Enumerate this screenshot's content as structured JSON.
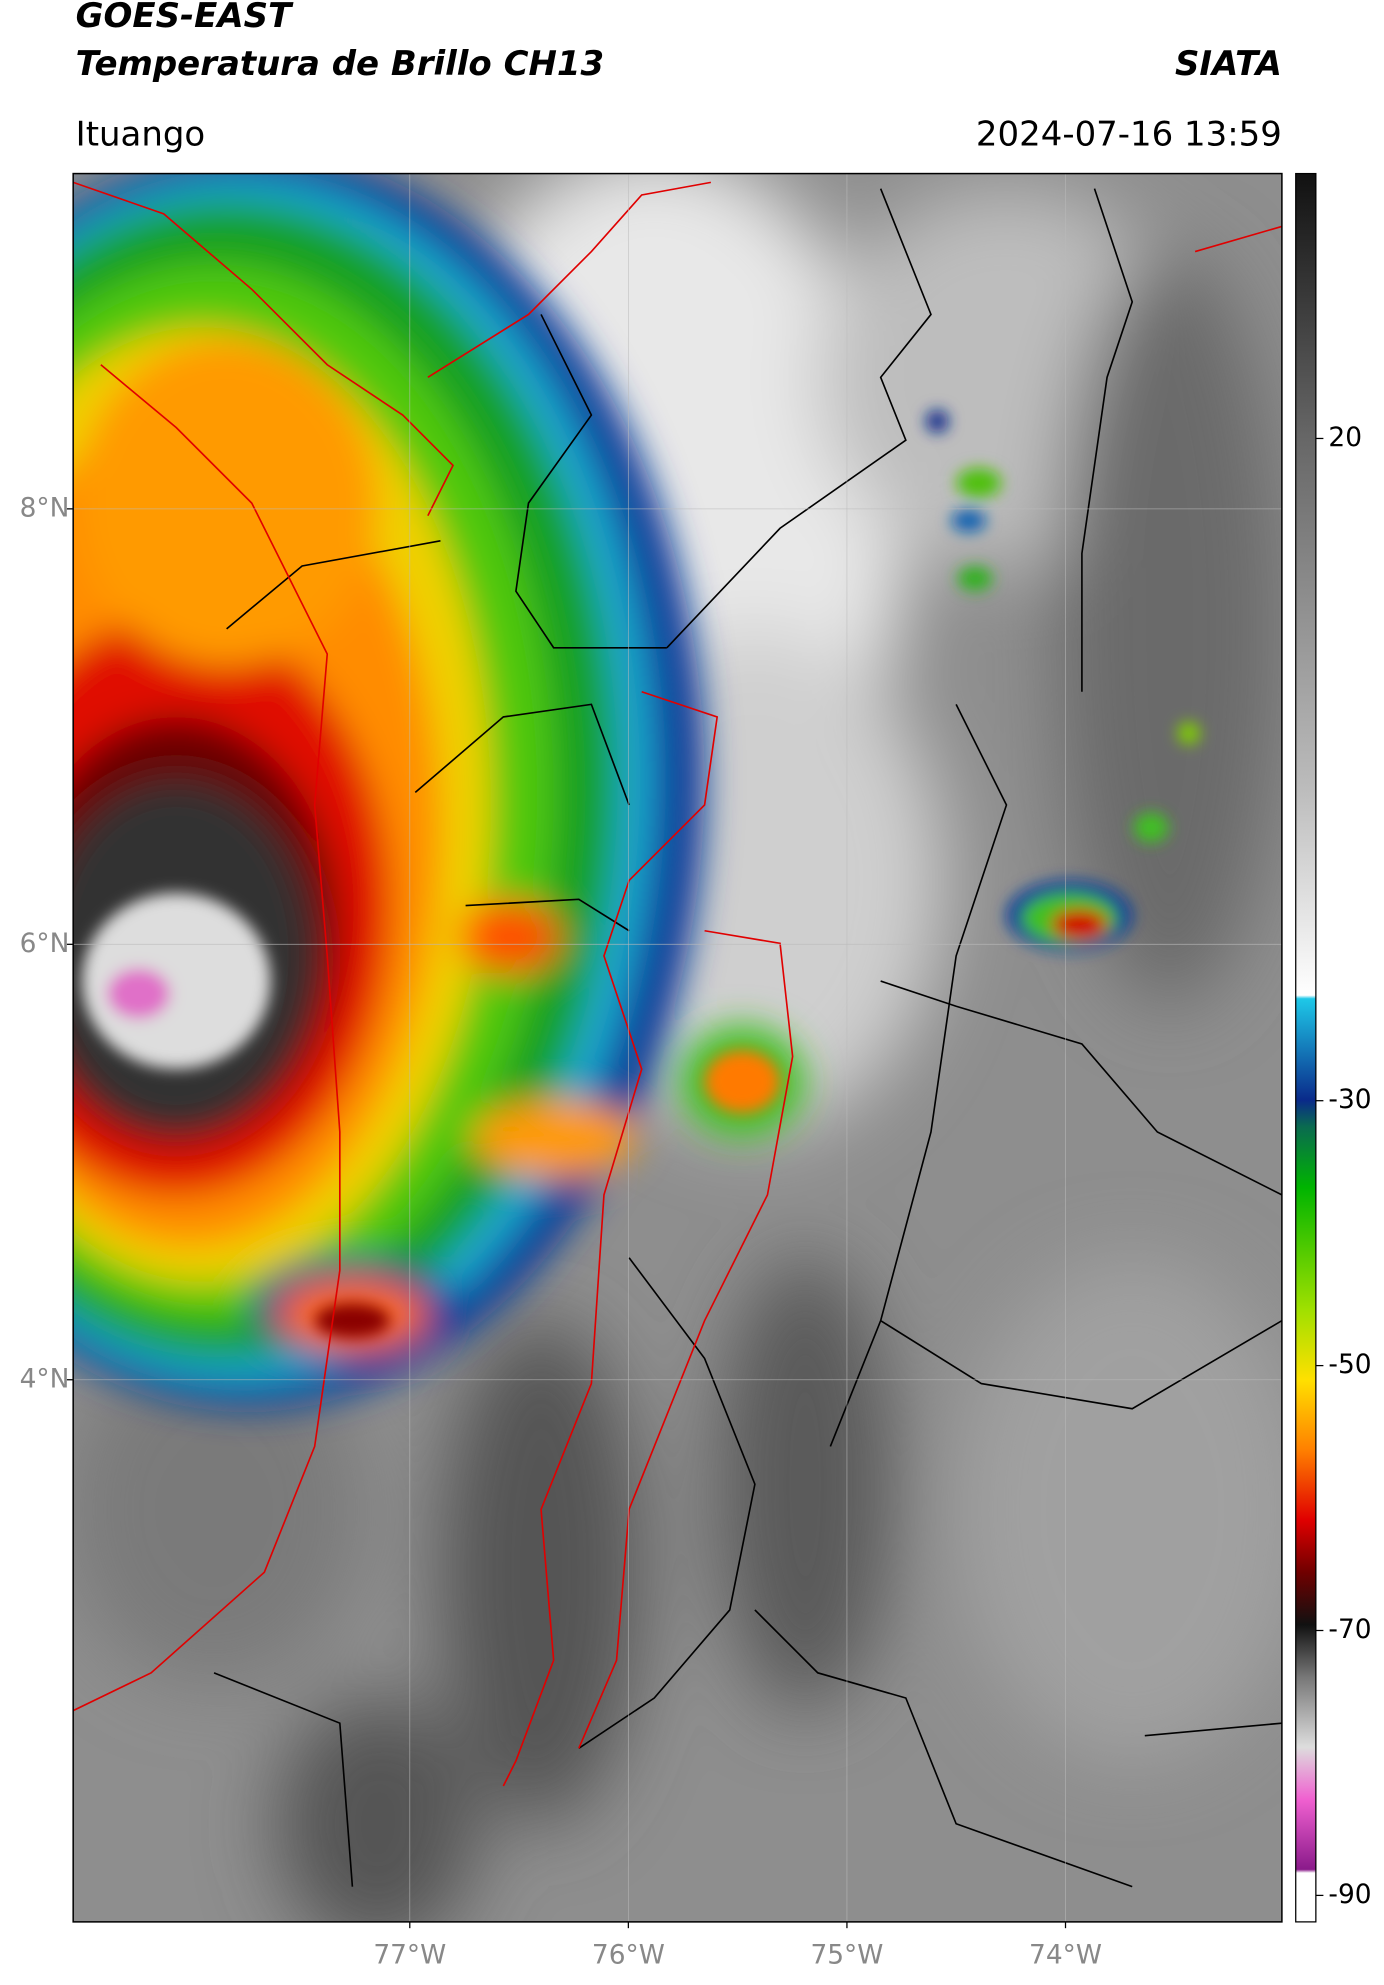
{
  "header": {
    "satellite": "GOES-EAST",
    "product": "Temperatura de Brillo CH13",
    "agency": "SIATA",
    "location": "Ituango",
    "datetime": "2024-07-16 13:59"
  },
  "map": {
    "lon_range": [
      -78.54,
      -73.01
    ],
    "lat_range": [
      1.51,
      9.54
    ],
    "lat_ticks": [
      {
        "value": 8,
        "label": "8°N"
      },
      {
        "value": 6,
        "label": "6°N"
      },
      {
        "value": 4,
        "label": "4°N"
      }
    ],
    "lon_ticks": [
      {
        "value": -77,
        "label": "77°W"
      },
      {
        "value": -76,
        "label": "76°W"
      },
      {
        "value": -75,
        "label": "75°W"
      },
      {
        "value": -74,
        "label": "74°W"
      }
    ],
    "grid": true
  },
  "colorbar": {
    "lim": [
      -92,
      40
    ],
    "ticks": [
      20,
      -30,
      -50,
      -70,
      -90
    ]
  }
}
